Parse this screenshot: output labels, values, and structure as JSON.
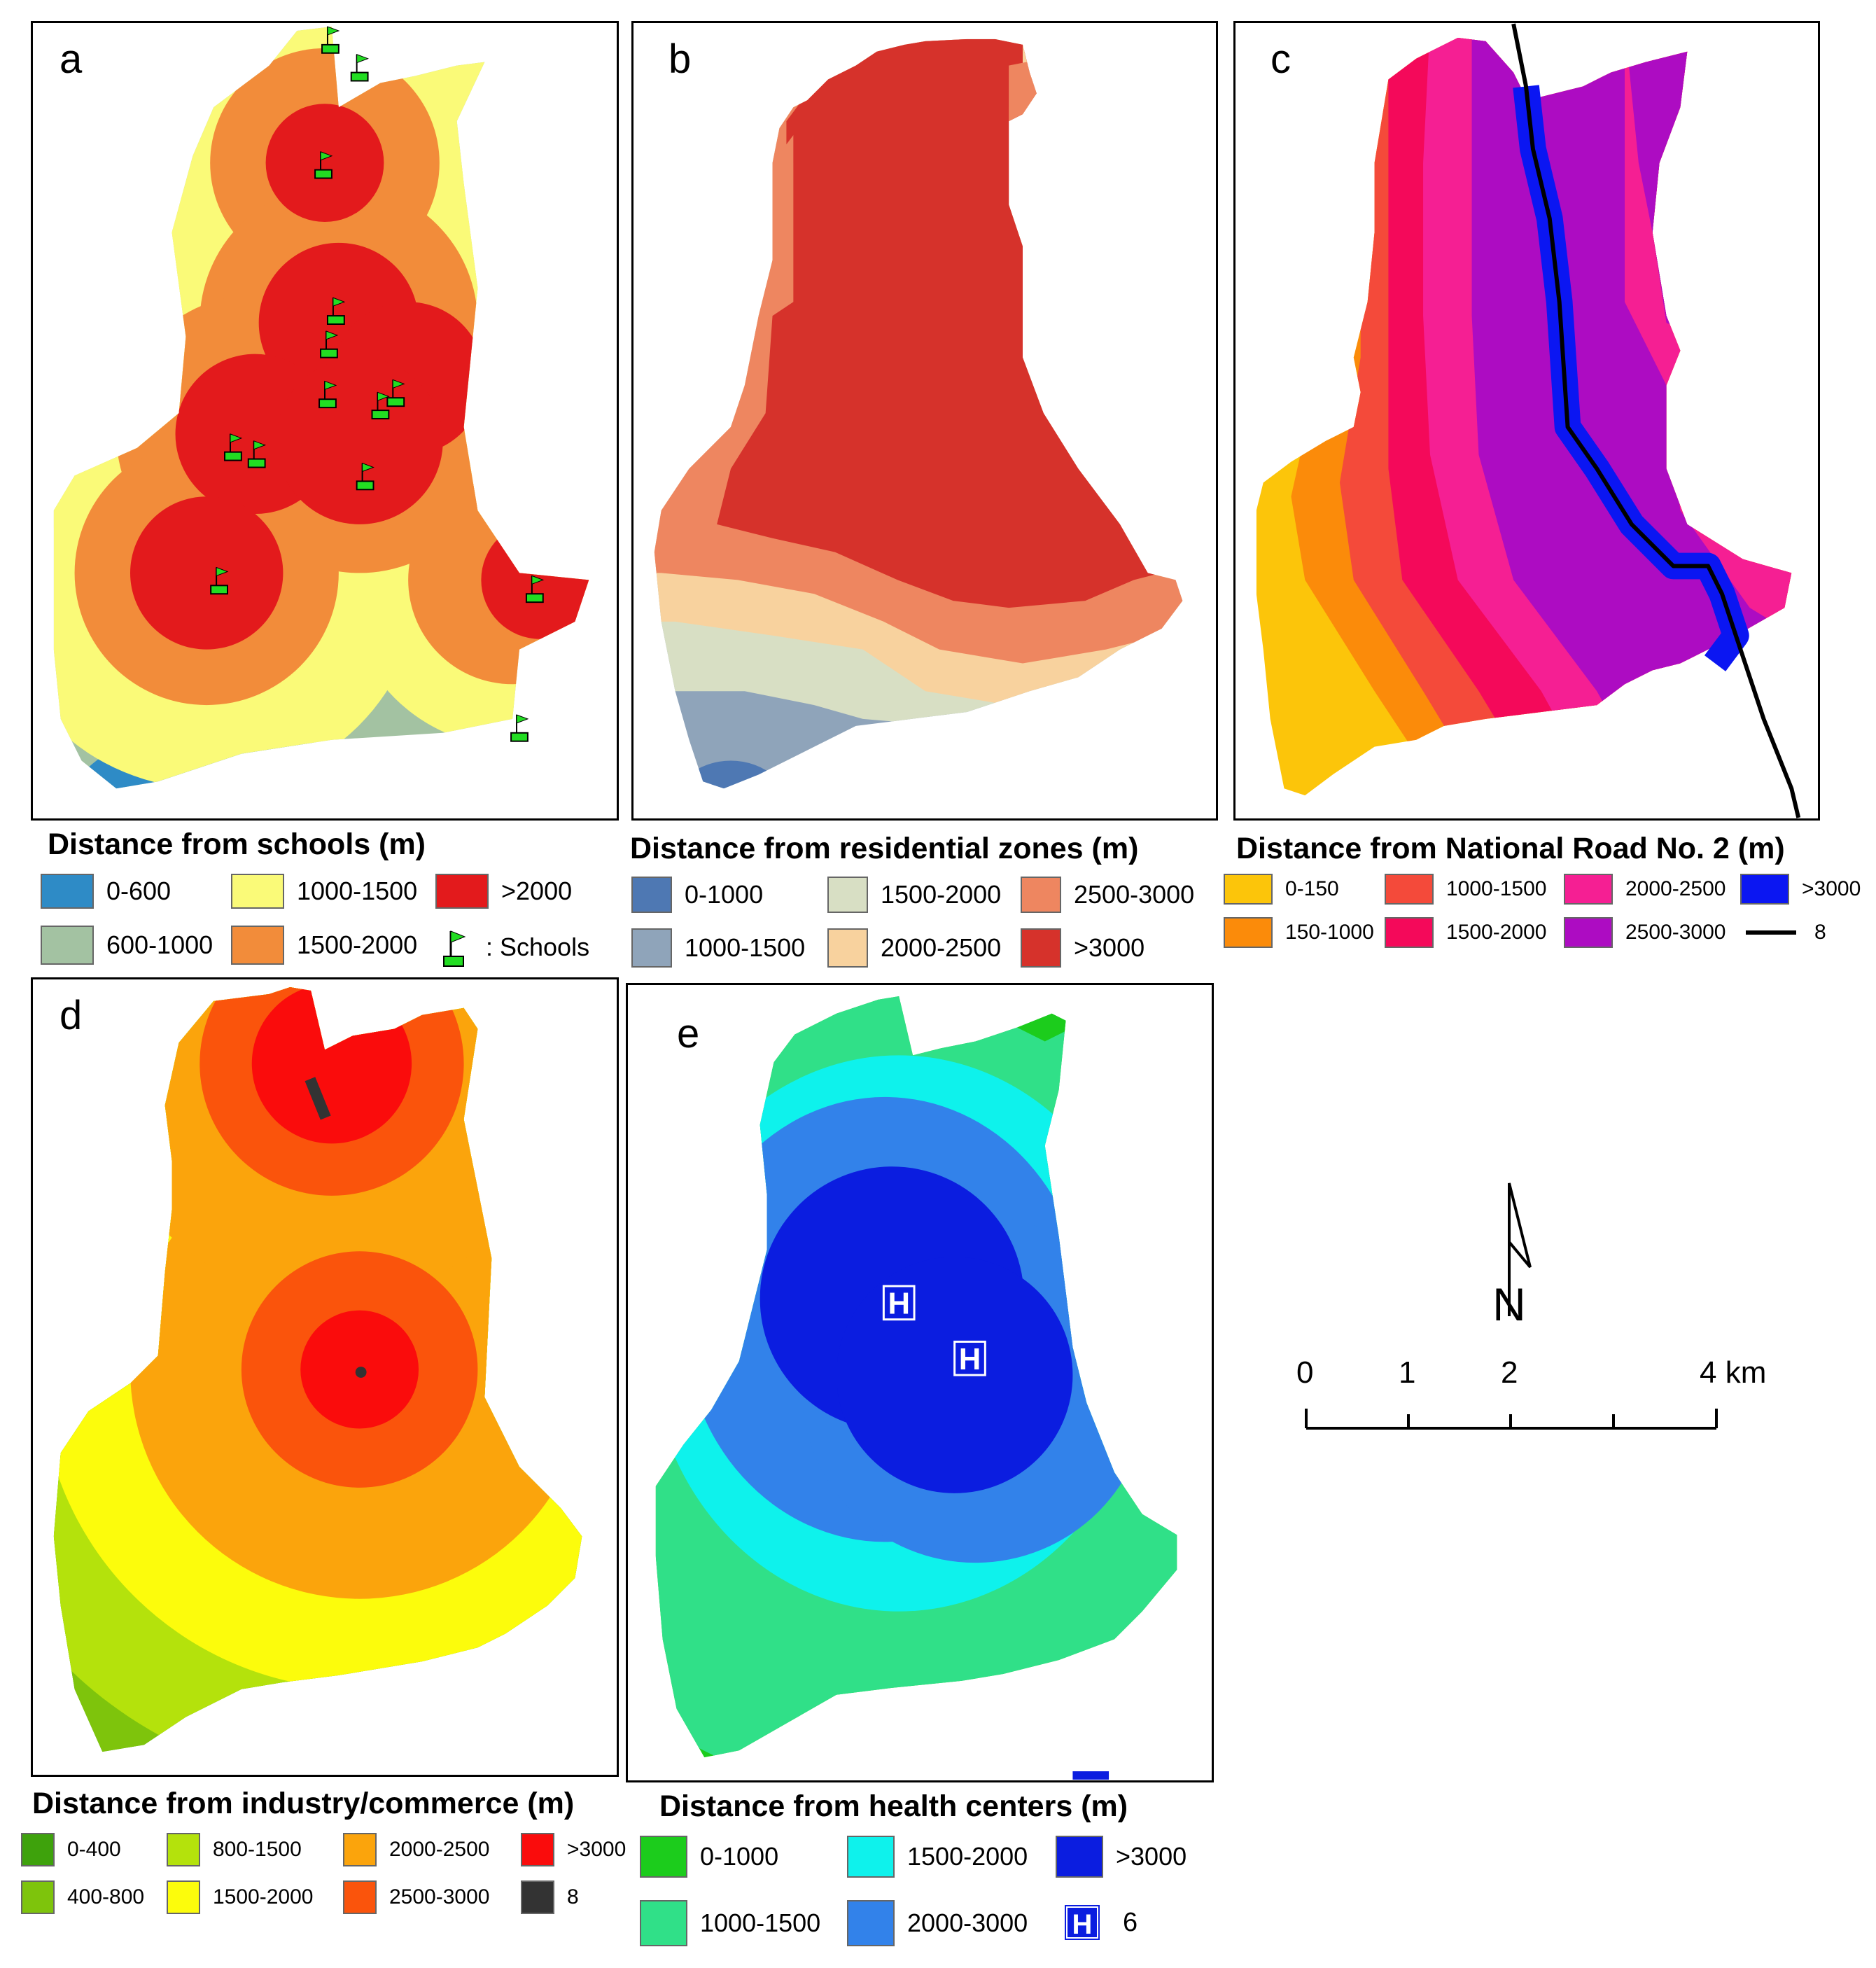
{
  "panels": {
    "a": {
      "letter": "a",
      "legend_title": "Distance from schools (m)",
      "legend": [
        {
          "label": "0-600",
          "color": "#2e8bc6"
        },
        {
          "label": "1000-1500",
          "color": "#fafa78"
        },
        {
          "label": ">2000",
          "color": "#e31a1c"
        },
        {
          "label": "600-1000",
          "color": "#a3c2a2"
        },
        {
          "label": "1500-2000",
          "color": "#f28c3a"
        }
      ],
      "schools_label": ": Schools",
      "schools_icon": "school-flag-icon"
    },
    "b": {
      "letter": "b",
      "legend_title": "Distance from residential zones (m)",
      "legend": [
        {
          "label": "0-1000",
          "color": "#4e78b3"
        },
        {
          "label": "1500-2000",
          "color": "#d8dfc4"
        },
        {
          "label": "2500-3000",
          "color": "#ee8660"
        },
        {
          "label": "1000-1500",
          "color": "#8fa4ba"
        },
        {
          "label": "2000-2500",
          "color": "#f8d29e"
        },
        {
          "label": ">3000",
          "color": "#d6322b"
        }
      ]
    },
    "c": {
      "letter": "c",
      "legend_title": "Distance from National Road No. 2 (m)",
      "legend": [
        {
          "label": "0-150",
          "color": "#fcc50a"
        },
        {
          "label": "1000-1500",
          "color": "#f44a3a"
        },
        {
          "label": "2000-2500",
          "color": "#f51f93"
        },
        {
          "label": ">3000",
          "color": "#0b16f2"
        },
        {
          "label": "150-1000",
          "color": "#fb8b0a"
        },
        {
          "label": "1500-2000",
          "color": "#f4095a"
        },
        {
          "label": "2500-3000",
          "color": "#ad0cc2"
        }
      ],
      "road_label": "8",
      "road_icon": "road-line-icon"
    },
    "d": {
      "letter": "d",
      "legend_title": "Distance from industry/commerce (m)",
      "legend": [
        {
          "label": "0-400",
          "color": "#3ea20c"
        },
        {
          "label": "800-1500",
          "color": "#b4e20c"
        },
        {
          "label": "2000-2500",
          "color": "#fba40c"
        },
        {
          "label": ">3000",
          "color": "#fa0c0c"
        },
        {
          "label": "400-800",
          "color": "#7ec40c"
        },
        {
          "label": "1500-2000",
          "color": "#fcfc0c"
        },
        {
          "label": "2500-3000",
          "color": "#fa540c"
        },
        {
          "label": "8",
          "color": "#333333"
        }
      ]
    },
    "e": {
      "letter": "e",
      "legend_title": "Distance from health centers (m)",
      "legend": [
        {
          "label": "0-1000",
          "color": "#1ccc1c"
        },
        {
          "label": "1500-2000",
          "color": "#0ef2ec"
        },
        {
          "label": ">3000",
          "color": "#0b1de0"
        },
        {
          "label": "1000-1500",
          "color": "#30e088"
        },
        {
          "label": "2000-3000",
          "color": "#3282ea"
        }
      ],
      "health_label": "6",
      "health_icon": "hospital-h-icon",
      "map_h": "H"
    }
  },
  "scale": {
    "labels": [
      "0",
      "1",
      "2",
      "4 km"
    ]
  },
  "north": {
    "label": "N"
  }
}
